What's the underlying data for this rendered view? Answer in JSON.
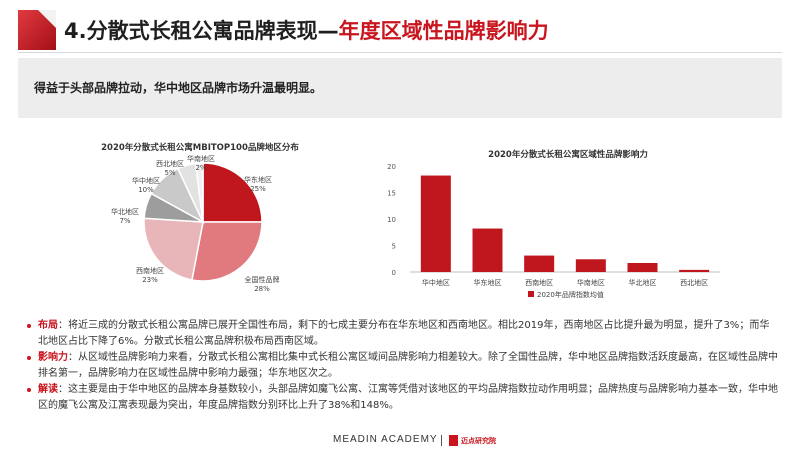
{
  "header": {
    "title_main": "4.分散式长租公寓品牌表现—",
    "title_accent": "年度区域性品牌影响力"
  },
  "banner": {
    "text": "得益于头部品牌拉动，华中地区品牌市场升温最明显。"
  },
  "colors": {
    "accent": "#c9151e",
    "banner_bg": "#ededed"
  },
  "chart_data": [
    {
      "type": "pie",
      "title": "2020年分散式长租公寓MBITOP100品牌地区分布",
      "categories": [
        "华东地区",
        "全国性品牌",
        "西南地区",
        "华北地区",
        "华中地区",
        "西北地区",
        "华南地区"
      ],
      "values": [
        25,
        28,
        23,
        7,
        10,
        5,
        2
      ],
      "labels": [
        "华东地区\n25%",
        "全国性品牌\n28%",
        "西南地区\n23%",
        "华北地区\n7%",
        "华中地区\n10%",
        "西北地区\n5%",
        "华南地区\n2%"
      ],
      "colors": [
        "#c0161d",
        "#e07a7f",
        "#e8b6b8",
        "#9d9d9d",
        "#c9c9c9",
        "#e2e2e2",
        "#f1f1f1"
      ]
    },
    {
      "type": "bar",
      "title": "2020年分散式长租公寓区域性品牌影响力",
      "categories": [
        "华中地区",
        "华东地区",
        "西南地区",
        "华南地区",
        "华北地区",
        "西北地区"
      ],
      "series": [
        {
          "name": "2020年品牌指数均值",
          "values": [
            18.2,
            8.2,
            3.1,
            2.4,
            1.7,
            0.4
          ]
        }
      ],
      "ylim": [
        0,
        20
      ],
      "yticks": [
        0,
        5,
        10,
        15,
        20
      ],
      "grid": false,
      "legend": "bottom",
      "color": "#c0161d"
    }
  ],
  "notes": [
    {
      "keyword": "布局",
      "text": "：将近三成的分散式长租公寓品牌已展开全国性布局，剩下的七成主要分布在华东地区和西南地区。相比2019年，西南地区占比提升最为明显，提升了3%；而华北地区占比下降了6%。分散式长租公寓品牌积极布局西南区域。"
    },
    {
      "keyword": "影响力",
      "text": "：从区域性品牌影响力来看，分散式长租公寓相比集中式长租公寓区域间品牌影响力相差较大。除了全国性品牌，华中地区品牌指数活跃度最高，在区域性品牌中排名第一，品牌影响力在区域性品牌中影响力最强；华东地区次之。"
    },
    {
      "keyword": "解读",
      "text": "：这主要是由于华中地区的品牌本身基数较小，头部品牌如魔飞公寓、江寓等凭借对该地区的平均品牌指数拉动作用明显；品牌热度与品牌影响力基本一致，华中地区的魔飞公寓及江寓表现最为突出，年度品牌指数分别环比上升了38%和148%。"
    }
  ],
  "footer": {
    "brand": "MEADIN ACADEMY",
    "institute": "迈点研究院"
  }
}
